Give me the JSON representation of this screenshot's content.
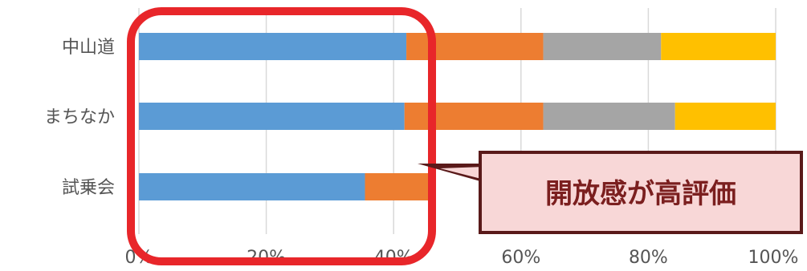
{
  "chart_data": {
    "type": "bar",
    "orientation": "horizontal",
    "stacked": "percent",
    "categories": [
      "中山道",
      "まちなか",
      "試乗会"
    ],
    "series": [
      {
        "values": [
          42,
          41.7,
          35.5
        ],
        "color": "#5b9bd5"
      },
      {
        "values": [
          21.5,
          21.8,
          10
        ],
        "color": "#ed7d31"
      },
      {
        "values": [
          18.5,
          20.7,
          0
        ],
        "color": "#a5a5a5"
      },
      {
        "values": [
          18,
          15.8,
          0
        ],
        "color": "#ffc000"
      }
    ],
    "xlim": [
      0,
      100
    ],
    "xticks": [
      "0%",
      "20%",
      "40%",
      "60%",
      "80%",
      "100%"
    ],
    "grid": true,
    "legend": "none"
  },
  "annotation": {
    "callout_text": "開放感が高評価",
    "highlight_color": "#e8262a",
    "callout_fill": "#f8d7d7",
    "callout_border": "#5a1a1a"
  }
}
